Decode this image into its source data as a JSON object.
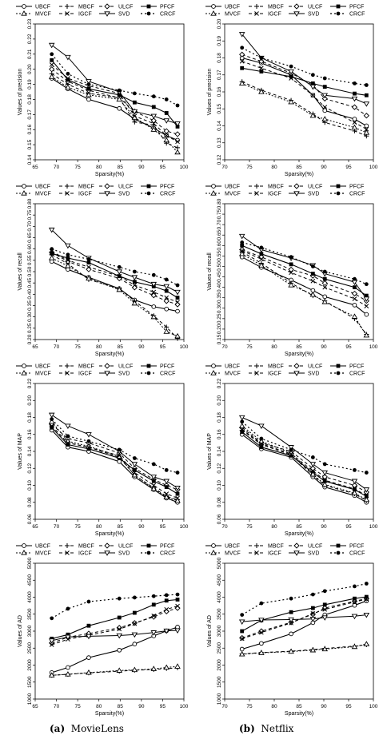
{
  "captions": [
    {
      "tag": "(a)",
      "text": "MovieLens"
    },
    {
      "tag": "(b)",
      "text": "Netflix"
    }
  ],
  "legend_labels": [
    "UBCF",
    "MBCF",
    "ULCF",
    "PFCF",
    "MVCF",
    "IGCF",
    "SVD",
    "CRCF"
  ],
  "chart_data": [
    {
      "type": "line",
      "panel": "MovieLens",
      "xlabel": "Sparsity(%)",
      "ylabel": "Values of precision",
      "xlim": [
        65,
        100
      ],
      "ylim": [
        0.14,
        0.23
      ],
      "xticks": [
        65,
        70,
        75,
        80,
        85,
        90,
        95,
        100
      ],
      "yticks": [
        0.14,
        0.15,
        0.16,
        0.17,
        0.18,
        0.19,
        0.2,
        0.21,
        0.22,
        0.23
      ],
      "x": [
        68.9,
        72.7,
        77.6,
        84.8,
        88.4,
        92.9,
        95.9,
        98.5
      ],
      "series": [
        {
          "name": "UBCF",
          "values": [
            0.194,
            0.187,
            0.18,
            0.174,
            0.167,
            0.161,
            0.156,
            0.153
          ]
        },
        {
          "name": "MBCF",
          "values": [
            0.197,
            0.19,
            0.184,
            0.181,
            0.165,
            0.163,
            0.151,
            0.148
          ]
        },
        {
          "name": "ULCF",
          "values": [
            0.2,
            0.192,
            0.186,
            0.181,
            0.172,
            0.166,
            0.159,
            0.157
          ]
        },
        {
          "name": "PFCF",
          "values": [
            0.206,
            0.193,
            0.187,
            0.183,
            0.178,
            0.175,
            0.171,
            0.162
          ]
        },
        {
          "name": "MVCF",
          "values": [
            0.195,
            0.188,
            0.183,
            0.18,
            0.168,
            0.16,
            0.153,
            0.145
          ]
        },
        {
          "name": "IGCF",
          "values": [
            0.203,
            0.194,
            0.189,
            0.184,
            0.169,
            0.164,
            0.156,
            0.152
          ]
        },
        {
          "name": "SVD",
          "values": [
            0.216,
            0.208,
            0.192,
            0.185,
            0.172,
            0.169,
            0.166,
            0.164
          ]
        },
        {
          "name": "CRCF",
          "values": [
            0.21,
            0.197,
            0.19,
            0.186,
            0.184,
            0.182,
            0.18,
            0.176
          ]
        }
      ]
    },
    {
      "type": "line",
      "panel": "Netflix",
      "xlabel": "Sparsity(%)",
      "ylabel": "Values of precision",
      "xlim": [
        70,
        100
      ],
      "ylim": [
        0.12,
        0.2
      ],
      "xticks": [
        70,
        75,
        80,
        85,
        90,
        95,
        100
      ],
      "yticks": [
        0.12,
        0.13,
        0.14,
        0.15,
        0.16,
        0.17,
        0.18,
        0.19,
        0.2
      ],
      "x": [
        73.5,
        77.4,
        83.4,
        87.8,
        90.2,
        96.2,
        98.6
      ],
      "series": [
        {
          "name": "UBCF",
          "values": [
            0.18,
            0.177,
            0.17,
            0.158,
            0.149,
            0.144,
            0.14
          ]
        },
        {
          "name": "MBCF",
          "values": [
            0.166,
            0.161,
            0.155,
            0.147,
            0.142,
            0.137,
            0.134
          ]
        },
        {
          "name": "ULCF",
          "values": [
            0.182,
            0.178,
            0.171,
            0.164,
            0.156,
            0.151,
            0.146
          ]
        },
        {
          "name": "PFCF",
          "values": [
            0.174,
            0.172,
            0.169,
            0.165,
            0.163,
            0.159,
            0.158
          ]
        },
        {
          "name": "MVCF",
          "values": [
            0.165,
            0.16,
            0.154,
            0.146,
            0.144,
            0.139,
            0.136
          ]
        },
        {
          "name": "IGCF",
          "values": [
            0.178,
            0.174,
            0.168,
            0.158,
            0.151,
            0.142,
            0.138
          ]
        },
        {
          "name": "SVD",
          "values": [
            0.194,
            0.18,
            0.172,
            0.163,
            0.158,
            0.156,
            0.153
          ]
        },
        {
          "name": "CRCF",
          "values": [
            0.186,
            0.18,
            0.175,
            0.17,
            0.168,
            0.165,
            0.164
          ]
        }
      ]
    },
    {
      "type": "line",
      "panel": "MovieLens",
      "xlabel": "Sparsity(%)",
      "ylabel": "Values of recall",
      "xlim": [
        65,
        100
      ],
      "ylim": [
        0.2,
        0.8
      ],
      "xticks": [
        65,
        70,
        75,
        80,
        85,
        90,
        95,
        100
      ],
      "yticks": [
        0.2,
        0.25,
        0.3,
        0.35,
        0.4,
        0.45,
        0.5,
        0.55,
        0.6,
        0.65,
        0.7,
        0.75,
        0.8
      ],
      "x": [
        68.9,
        72.7,
        77.6,
        84.8,
        88.4,
        92.9,
        95.9,
        98.5
      ],
      "series": [
        {
          "name": "UBCF",
          "values": [
            0.545,
            0.51,
            0.475,
            0.425,
            0.375,
            0.345,
            0.335,
            0.325
          ]
        },
        {
          "name": "MBCF",
          "values": [
            0.575,
            0.535,
            0.465,
            0.425,
            0.37,
            0.305,
            0.255,
            0.205
          ]
        },
        {
          "name": "ULCF",
          "values": [
            0.585,
            0.545,
            0.51,
            0.47,
            0.43,
            0.395,
            0.37,
            0.355
          ]
        },
        {
          "name": "PFCF",
          "values": [
            0.58,
            0.56,
            0.54,
            0.48,
            0.455,
            0.435,
            0.415,
            0.385
          ]
        },
        {
          "name": "MVCF",
          "values": [
            0.56,
            0.525,
            0.47,
            0.42,
            0.36,
            0.3,
            0.235,
            0.215
          ]
        },
        {
          "name": "IGCF",
          "values": [
            0.59,
            0.55,
            0.52,
            0.48,
            0.44,
            0.41,
            0.385,
            0.365
          ]
        },
        {
          "name": "SVD",
          "values": [
            0.685,
            0.615,
            0.56,
            0.5,
            0.475,
            0.445,
            0.435,
            0.41
          ]
        },
        {
          "name": "CRCF",
          "values": [
            0.6,
            0.575,
            0.555,
            0.52,
            0.5,
            0.485,
            0.465,
            0.44
          ]
        }
      ]
    },
    {
      "type": "line",
      "panel": "Netflix",
      "xlabel": "Sparsity(%)",
      "ylabel": "Values of recall",
      "xlim": [
        70,
        100
      ],
      "ylim": [
        0.15,
        0.8
      ],
      "xticks": [
        70,
        75,
        80,
        85,
        90,
        95,
        100
      ],
      "yticks": [
        0.15,
        0.2,
        0.25,
        0.3,
        0.35,
        0.4,
        0.45,
        0.5,
        0.55,
        0.6,
        0.65,
        0.7,
        0.75,
        0.8
      ],
      "x": [
        73.5,
        77.4,
        83.4,
        87.8,
        90.2,
        96.2,
        98.6
      ],
      "series": [
        {
          "name": "UBCF",
          "values": [
            0.545,
            0.495,
            0.435,
            0.385,
            0.355,
            0.315,
            0.27
          ]
        },
        {
          "name": "MBCF",
          "values": [
            0.57,
            0.515,
            0.42,
            0.36,
            0.335,
            0.25,
            0.175
          ]
        },
        {
          "name": "ULCF",
          "values": [
            0.58,
            0.545,
            0.485,
            0.455,
            0.42,
            0.37,
            0.335
          ]
        },
        {
          "name": "PFCF",
          "values": [
            0.6,
            0.56,
            0.51,
            0.465,
            0.44,
            0.4,
            0.36
          ]
        },
        {
          "name": "MVCF",
          "values": [
            0.56,
            0.505,
            0.41,
            0.365,
            0.33,
            0.26,
            0.17
          ]
        },
        {
          "name": "IGCF",
          "values": [
            0.575,
            0.535,
            0.47,
            0.43,
            0.4,
            0.345,
            0.31
          ]
        },
        {
          "name": "SVD",
          "values": [
            0.645,
            0.58,
            0.54,
            0.505,
            0.465,
            0.425,
            0.345
          ]
        },
        {
          "name": "CRCF",
          "values": [
            0.615,
            0.59,
            0.545,
            0.5,
            0.475,
            0.44,
            0.415
          ]
        }
      ]
    },
    {
      "type": "line",
      "panel": "MovieLens",
      "xlabel": "Sparsity(%)",
      "ylabel": "Values of MAP",
      "xlim": [
        65,
        100
      ],
      "ylim": [
        0.06,
        0.22
      ],
      "xticks": [
        65,
        70,
        75,
        80,
        85,
        90,
        95,
        100
      ],
      "yticks": [
        0.06,
        0.08,
        0.1,
        0.12,
        0.14,
        0.16,
        0.18,
        0.2,
        0.22
      ],
      "x": [
        68.9,
        72.7,
        77.6,
        84.8,
        88.4,
        92.9,
        95.9,
        98.5
      ],
      "series": [
        {
          "name": "UBCF",
          "values": [
            0.165,
            0.145,
            0.14,
            0.128,
            0.11,
            0.095,
            0.085,
            0.08
          ]
        },
        {
          "name": "MBCF",
          "values": [
            0.17,
            0.15,
            0.145,
            0.133,
            0.112,
            0.097,
            0.087,
            0.083
          ]
        },
        {
          "name": "ULCF",
          "values": [
            0.172,
            0.155,
            0.15,
            0.138,
            0.12,
            0.107,
            0.1,
            0.095
          ]
        },
        {
          "name": "PFCF",
          "values": [
            0.168,
            0.148,
            0.143,
            0.132,
            0.118,
            0.105,
            0.098,
            0.09
          ]
        },
        {
          "name": "MVCF",
          "values": [
            0.175,
            0.152,
            0.146,
            0.134,
            0.112,
            0.096,
            0.086,
            0.082
          ]
        },
        {
          "name": "IGCF",
          "values": [
            0.17,
            0.15,
            0.145,
            0.135,
            0.115,
            0.1,
            0.09,
            0.085
          ]
        },
        {
          "name": "SVD",
          "values": [
            0.183,
            0.17,
            0.16,
            0.14,
            0.125,
            0.11,
            0.105,
            0.097
          ]
        },
        {
          "name": "CRCF",
          "values": [
            0.178,
            0.158,
            0.152,
            0.142,
            0.132,
            0.125,
            0.118,
            0.115
          ]
        }
      ]
    },
    {
      "type": "line",
      "panel": "Netflix",
      "xlabel": "Sparsity(%)",
      "ylabel": "Values of MAP",
      "xlim": [
        70,
        100
      ],
      "ylim": [
        0.06,
        0.22
      ],
      "xticks": [
        70,
        75,
        80,
        85,
        90,
        95,
        100
      ],
      "yticks": [
        0.06,
        0.08,
        0.1,
        0.12,
        0.14,
        0.16,
        0.18,
        0.2,
        0.22
      ],
      "x": [
        73.5,
        77.4,
        83.4,
        87.8,
        90.2,
        96.2,
        98.6
      ],
      "series": [
        {
          "name": "UBCF",
          "values": [
            0.16,
            0.143,
            0.133,
            0.11,
            0.098,
            0.088,
            0.08
          ]
        },
        {
          "name": "MBCF",
          "values": [
            0.165,
            0.148,
            0.136,
            0.112,
            0.1,
            0.09,
            0.082
          ]
        },
        {
          "name": "ULCF",
          "values": [
            0.168,
            0.15,
            0.14,
            0.12,
            0.11,
            0.1,
            0.092
          ]
        },
        {
          "name": "PFCF",
          "values": [
            0.163,
            0.145,
            0.135,
            0.115,
            0.105,
            0.095,
            0.087
          ]
        },
        {
          "name": "MVCF",
          "values": [
            0.17,
            0.152,
            0.138,
            0.113,
            0.101,
            0.091,
            0.083
          ]
        },
        {
          "name": "IGCF",
          "values": [
            0.166,
            0.149,
            0.137,
            0.117,
            0.106,
            0.096,
            0.088
          ]
        },
        {
          "name": "SVD",
          "values": [
            0.18,
            0.17,
            0.145,
            0.125,
            0.115,
            0.105,
            0.095
          ]
        },
        {
          "name": "CRCF",
          "values": [
            0.175,
            0.155,
            0.142,
            0.133,
            0.125,
            0.118,
            0.115
          ]
        }
      ]
    },
    {
      "type": "line",
      "panel": "MovieLens",
      "xlabel": "Sparsity(%)",
      "ylabel": "Values of AD",
      "xlim": [
        65,
        100
      ],
      "ylim": [
        1000,
        5000
      ],
      "xticks": [
        65,
        70,
        75,
        80,
        85,
        90,
        95,
        100
      ],
      "yticks": [
        1000,
        1500,
        2000,
        2500,
        3000,
        3500,
        4000,
        4500,
        5000
      ],
      "x": [
        68.9,
        72.7,
        77.6,
        84.8,
        88.4,
        92.9,
        95.9,
        98.5
      ],
      "series": [
        {
          "name": "UBCF",
          "values": [
            1780,
            1930,
            2220,
            2440,
            2620,
            2860,
            3010,
            3120
          ]
        },
        {
          "name": "MBCF",
          "values": [
            1700,
            1730,
            1770,
            1820,
            1850,
            1870,
            1900,
            1920
          ]
        },
        {
          "name": "ULCF",
          "values": [
            2650,
            2820,
            2930,
            3100,
            3240,
            3420,
            3580,
            3680
          ]
        },
        {
          "name": "PFCF",
          "values": [
            2780,
            2900,
            3160,
            3400,
            3540,
            3780,
            3900,
            3930
          ]
        },
        {
          "name": "MVCF",
          "values": [
            1700,
            1730,
            1780,
            1840,
            1860,
            1890,
            1930,
            1960
          ]
        },
        {
          "name": "IGCF",
          "values": [
            2600,
            2760,
            2880,
            3060,
            3220,
            3450,
            3640,
            3740
          ]
        },
        {
          "name": "SVD",
          "values": [
            2720,
            2830,
            2850,
            2870,
            2900,
            2960,
            3010,
            3020
          ]
        },
        {
          "name": "CRCF",
          "values": [
            3380,
            3660,
            3870,
            3960,
            3990,
            4030,
            4060,
            4080
          ]
        }
      ]
    },
    {
      "type": "line",
      "panel": "Netflix",
      "xlabel": "Sparsity(%)",
      "ylabel": "Values of AD",
      "xlim": [
        70,
        100
      ],
      "ylim": [
        1000,
        5000
      ],
      "xticks": [
        70,
        75,
        80,
        85,
        90,
        95,
        100
      ],
      "yticks": [
        1000,
        1500,
        2000,
        2500,
        3000,
        3500,
        4000,
        4500,
        5000
      ],
      "x": [
        73.5,
        77.4,
        83.4,
        87.8,
        90.2,
        96.2,
        98.6
      ],
      "series": [
        {
          "name": "UBCF",
          "values": [
            2470,
            2640,
            2920,
            3250,
            3480,
            3760,
            3890
          ]
        },
        {
          "name": "MBCF",
          "values": [
            2330,
            2370,
            2410,
            2460,
            2490,
            2560,
            2600
          ]
        },
        {
          "name": "ULCF",
          "values": [
            2800,
            3000,
            3260,
            3500,
            3680,
            3880,
            3960
          ]
        },
        {
          "name": "PFCF",
          "values": [
            3000,
            3320,
            3560,
            3680,
            3780,
            3960,
            4010
          ]
        },
        {
          "name": "MVCF",
          "values": [
            2320,
            2360,
            2400,
            2440,
            2470,
            2540,
            2620
          ]
        },
        {
          "name": "IGCF",
          "values": [
            2780,
            2960,
            3240,
            3520,
            3640,
            3860,
            3940
          ]
        },
        {
          "name": "SVD",
          "values": [
            3280,
            3330,
            3340,
            3360,
            3400,
            3440,
            3480
          ]
        },
        {
          "name": "CRCF",
          "values": [
            3480,
            3820,
            3960,
            4080,
            4180,
            4320,
            4400
          ]
        }
      ]
    }
  ]
}
